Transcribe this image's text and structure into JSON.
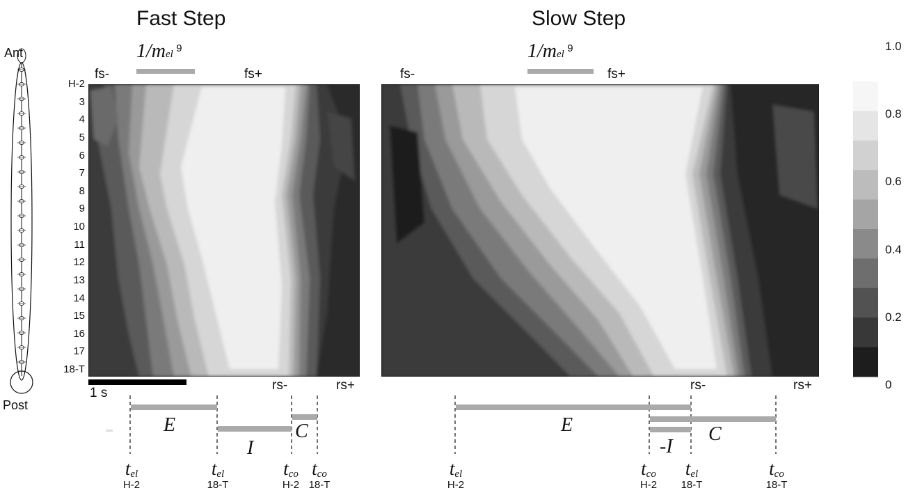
{
  "left_axis": {
    "ant_label": "Ant",
    "post_label": "Post",
    "segments": [
      "H-2",
      "3",
      "4",
      "5",
      "6",
      "7",
      "8",
      "9",
      "10",
      "11",
      "12",
      "13",
      "14",
      "15",
      "16",
      "17",
      "18-T"
    ]
  },
  "fast": {
    "title": "Fast Step",
    "bar_label": "1/m",
    "bar_label_sub": "el",
    "bar_label_sup": "9",
    "fs_minus": "fs-",
    "fs_plus": "fs+",
    "rs_minus": "rs-",
    "rs_plus": "rs+",
    "scale_label": "1 s",
    "phase_E": "E",
    "phase_I": "I",
    "phase_C": "C",
    "times": [
      {
        "main": "t",
        "sub": "el",
        "seg": "H-2"
      },
      {
        "main": "t",
        "sub": "el",
        "seg": "18-T"
      },
      {
        "main": "t",
        "sub": "co",
        "seg": "H-2"
      },
      {
        "main": "t",
        "sub": "co",
        "seg": "18-T"
      }
    ]
  },
  "slow": {
    "title": "Slow Step",
    "bar_label": "1/m",
    "bar_label_sub": "el",
    "bar_label_sup": "9",
    "fs_minus": "fs-",
    "fs_plus": "fs+",
    "rs_minus": "rs-",
    "rs_plus": "rs+",
    "phase_E": "E",
    "phase_I": "-I",
    "phase_C": "C",
    "times": [
      {
        "main": "t",
        "sub": "el",
        "seg": "H-2"
      },
      {
        "main": "t",
        "sub": "co",
        "seg": "H-2"
      },
      {
        "main": "t",
        "sub": "el",
        "seg": "18-T"
      },
      {
        "main": "t",
        "sub": "co",
        "seg": "18-T"
      }
    ]
  },
  "colorbar": {
    "ticks": [
      "1.0",
      "0.8",
      "0.6",
      "0.4",
      "0.2",
      "0"
    ],
    "colors": [
      "#f6f6f6",
      "#e5e5e5",
      "#d1d1d1",
      "#bcbcbc",
      "#a5a5a5",
      "#8a8a8a",
      "#6e6e6e",
      "#525252",
      "#383838",
      "#1d1d1d"
    ]
  }
}
